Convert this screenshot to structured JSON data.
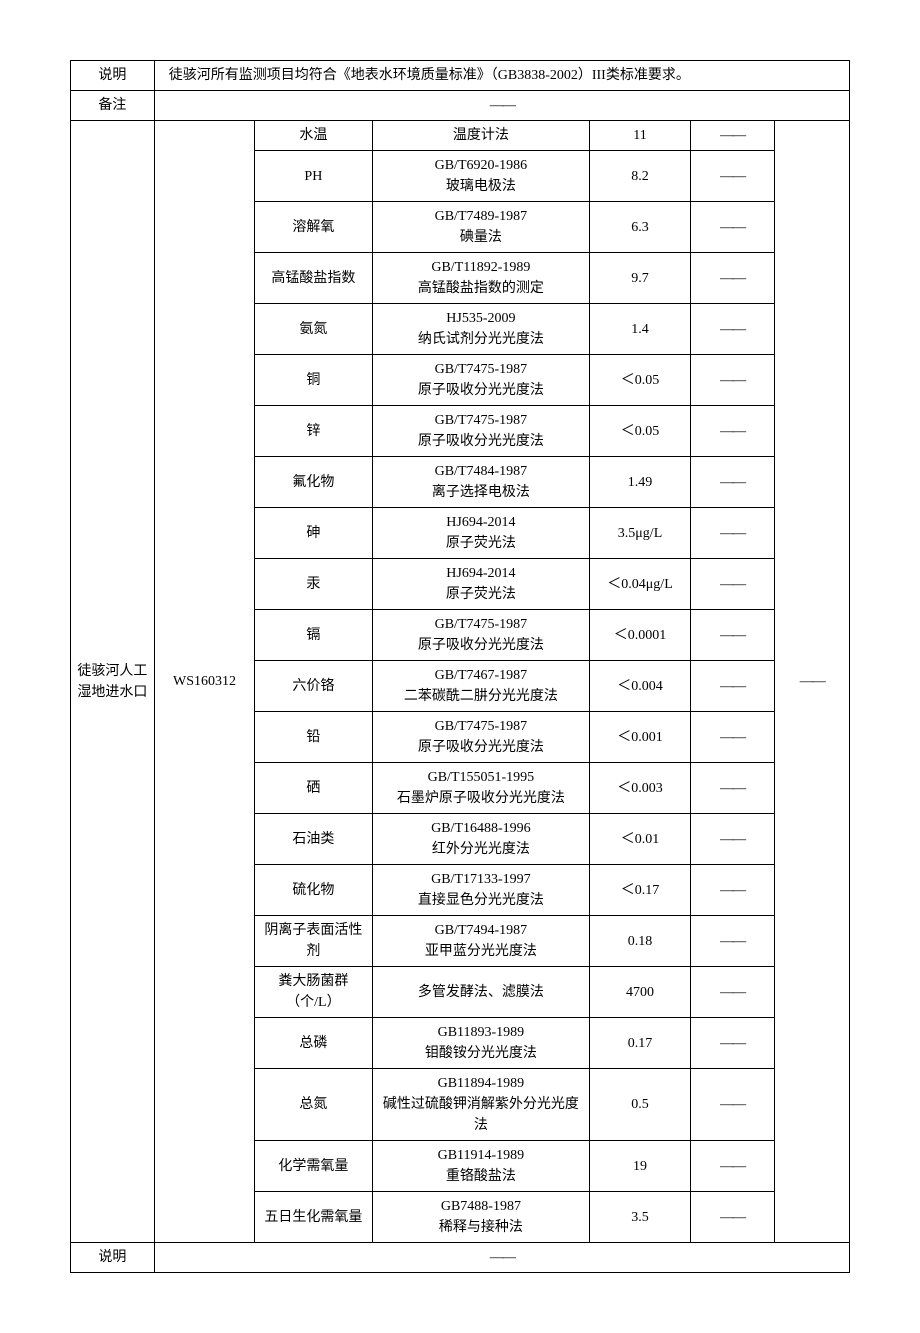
{
  "header": {
    "desc_label": "说明",
    "desc_text": "徒骇河所有监测项目均符合《地表水环境质量标准》（GB3838-2002）III类标准要求。",
    "remark_label": "备注",
    "remark_value": "——"
  },
  "site": {
    "name": "徒骇河人工湿地进水口",
    "code": "WS160312"
  },
  "rows": [
    {
      "param": "水温",
      "method": "温度计法",
      "value": "11",
      "col6": "——"
    },
    {
      "param": "PH",
      "method": "GB/T6920-1986\n玻璃电极法",
      "value": "8.2",
      "col6": "——"
    },
    {
      "param": "溶解氧",
      "method": "GB/T7489-1987\n碘量法",
      "value": "6.3",
      "col6": "——"
    },
    {
      "param": "高锰酸盐指数",
      "method": "GB/T11892-1989\n高锰酸盐指数的测定",
      "value": "9.7",
      "col6": "——"
    },
    {
      "param": "氨氮",
      "method": "HJ535-2009\n纳氏试剂分光光度法",
      "value": "1.4",
      "col6": "——"
    },
    {
      "param": "铜",
      "method": "GB/T7475-1987\n原子吸收分光光度法",
      "value": "＜0.05",
      "col6": "——"
    },
    {
      "param": "锌",
      "method": "GB/T7475-1987\n原子吸收分光光度法",
      "value": "＜0.05",
      "col6": "——"
    },
    {
      "param": "氟化物",
      "method": "GB/T7484-1987\n离子选择电极法",
      "value": "1.49",
      "col6": "——"
    },
    {
      "param": "砷",
      "method": "HJ694-2014\n原子荧光法",
      "value": "3.5μg/L",
      "col6": "——"
    },
    {
      "param": "汞",
      "method": "HJ694-2014\n原子荧光法",
      "value": "＜0.04μg/L",
      "col6": "——"
    },
    {
      "param": "镉",
      "method": "GB/T7475-1987\n原子吸收分光光度法",
      "value": "＜0.0001",
      "col6": "——"
    },
    {
      "param": "六价铬",
      "method": "GB/T7467-1987\n二苯碳酰二肼分光光度法",
      "value": "＜0.004",
      "col6": "——"
    },
    {
      "param": "铅",
      "method": "GB/T7475-1987\n原子吸收分光光度法",
      "value": "＜0.001",
      "col6": "——"
    },
    {
      "param": "硒",
      "method": "GB/T155051-1995\n石墨炉原子吸收分光光度法",
      "value": "＜0.003",
      "col6": "——"
    },
    {
      "param": "石油类",
      "method": "GB/T16488-1996\n红外分光光度法",
      "value": "＜0.01",
      "col6": "——"
    },
    {
      "param": "硫化物",
      "method": "GB/T17133-1997\n直接显色分光光度法",
      "value": "＜0.17",
      "col6": "——"
    },
    {
      "param": "阴离子表面活性剂",
      "method": "GB/T7494-1987\n亚甲蓝分光光度法",
      "value": "0.18",
      "col6": "——"
    },
    {
      "param": "粪大肠菌群（个/L）",
      "method": "多管发酵法、滤膜法",
      "value": "4700",
      "col6": "——"
    },
    {
      "param": "总磷",
      "method": "GB11893-1989\n钼酸铵分光光度法",
      "value": "0.17",
      "col6": "——"
    },
    {
      "param": "总氮",
      "method": "GB11894-1989\n碱性过硫酸钾消解紫外分光光度法",
      "value": "0.5",
      "col6": "——"
    },
    {
      "param": "化学需氧量",
      "method": "GB11914-1989\n重铬酸盐法",
      "value": "19",
      "col6": "——"
    },
    {
      "param": "五日生化需氧量",
      "method": "GB7488-1987\n稀释与接种法",
      "value": "3.5",
      "col6": "——"
    }
  ],
  "footer": {
    "desc_label": "说明",
    "desc_value": "——"
  },
  "col7_value": "——",
  "styling": {
    "border_color": "#000000",
    "background": "#ffffff",
    "font_family": "SimSun",
    "font_size_pt": 10.5,
    "text_color": "#000000"
  }
}
